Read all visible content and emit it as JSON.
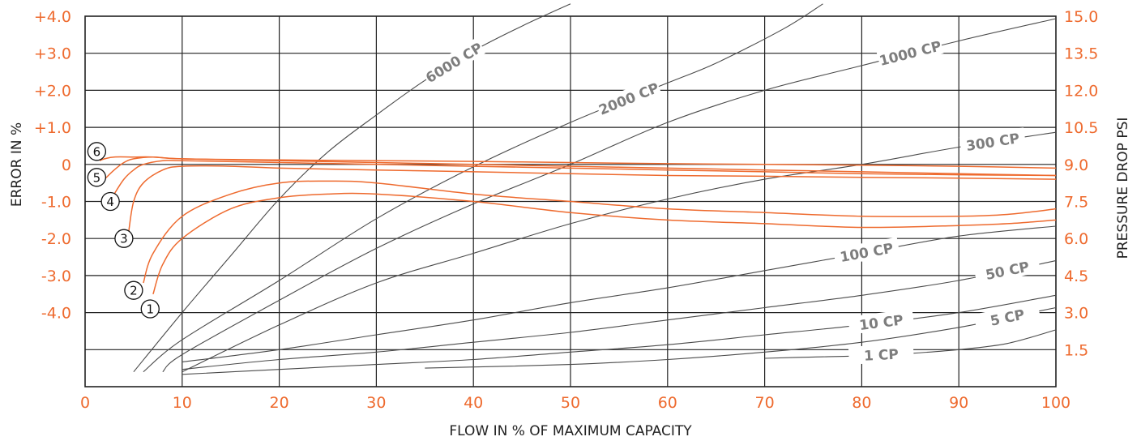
{
  "chart_data": {
    "type": "line",
    "title": "",
    "xlabel": "FLOW IN % OF MAXIMUM CAPACITY",
    "ylabel_left": "ERROR IN %",
    "ylabel_right": "PRESSURE DROP PSI",
    "xlim": [
      0,
      100
    ],
    "ylim_left": [
      -6.0,
      4.0
    ],
    "ylim_right": [
      0.0,
      15.0
    ],
    "x_ticks": [
      "0",
      "10",
      "20",
      "30",
      "40",
      "50",
      "60",
      "70",
      "80",
      "90",
      "100"
    ],
    "y_ticks_left": [
      {
        "value": 4,
        "label": "+4.0"
      },
      {
        "value": 3,
        "label": "+3.0"
      },
      {
        "value": 2,
        "label": "+2.0"
      },
      {
        "value": 1,
        "label": "+1.0"
      },
      {
        "value": 0,
        "label": "0"
      },
      {
        "value": -1,
        "label": "-1.0"
      },
      {
        "value": -2,
        "label": "-2.0"
      },
      {
        "value": -3,
        "label": "-3.0"
      },
      {
        "value": -4,
        "label": "-4.0"
      }
    ],
    "y_ticks_right": [
      {
        "value": 15.0,
        "label": "15.0"
      },
      {
        "value": 13.5,
        "label": "13.5"
      },
      {
        "value": 12.0,
        "label": "12.0"
      },
      {
        "value": 10.5,
        "label": "10.5"
      },
      {
        "value": 9.0,
        "label": "9.0"
      },
      {
        "value": 7.5,
        "label": "7.5"
      },
      {
        "value": 6.0,
        "label": "6.0"
      },
      {
        "value": 4.5,
        "label": "4.5"
      },
      {
        "value": 3.0,
        "label": "3.0"
      },
      {
        "value": 1.5,
        "label": "1.5"
      }
    ],
    "grid": true,
    "error_series": [
      {
        "name": "1",
        "axis": "left",
        "color": "#ee6a2e",
        "x": [
          7,
          8,
          10,
          15,
          20,
          25,
          30,
          40,
          50,
          60,
          70,
          80,
          90,
          95,
          100
        ],
        "y": [
          -3.5,
          -2.7,
          -2.0,
          -1.2,
          -0.9,
          -0.8,
          -0.8,
          -1.0,
          -1.3,
          -1.5,
          -1.6,
          -1.7,
          -1.65,
          -1.6,
          -1.5
        ]
      },
      {
        "name": "2",
        "axis": "left",
        "color": "#ee6a2e",
        "x": [
          6,
          7,
          10,
          15,
          20,
          25,
          30,
          40,
          50,
          60,
          70,
          80,
          90,
          95,
          100
        ],
        "y": [
          -3.2,
          -2.4,
          -1.4,
          -0.8,
          -0.5,
          -0.45,
          -0.5,
          -0.8,
          -1.0,
          -1.2,
          -1.3,
          -1.4,
          -1.4,
          -1.35,
          -1.2
        ]
      },
      {
        "name": "3",
        "axis": "left",
        "color": "#ee6a2e",
        "x": [
          4.5,
          5,
          6,
          8,
          10,
          15,
          20,
          30,
          40,
          50,
          60,
          70,
          80,
          90,
          100
        ],
        "y": [
          -1.8,
          -1.0,
          -0.5,
          -0.15,
          -0.05,
          -0.05,
          -0.1,
          -0.15,
          -0.2,
          -0.25,
          -0.3,
          -0.32,
          -0.35,
          -0.37,
          -0.4
        ]
      },
      {
        "name": "4",
        "axis": "left",
        "color": "#ee6a2e",
        "x": [
          3,
          4,
          5,
          6,
          8,
          10,
          20,
          30,
          40,
          50,
          60,
          70,
          80,
          90,
          100
        ],
        "y": [
          -0.8,
          -0.4,
          -0.15,
          0.0,
          0.1,
          0.1,
          0.05,
          0.0,
          -0.05,
          -0.1,
          -0.15,
          -0.2,
          -0.25,
          -0.28,
          -0.3
        ]
      },
      {
        "name": "5",
        "axis": "left",
        "color": "#ee6a2e",
        "x": [
          2,
          3,
          4,
          5,
          7,
          10,
          20,
          30,
          40,
          50,
          60,
          70,
          80,
          90,
          100
        ],
        "y": [
          -0.4,
          -0.15,
          0.05,
          0.15,
          0.2,
          0.15,
          0.1,
          0.05,
          0.0,
          -0.05,
          -0.1,
          -0.15,
          -0.2,
          -0.25,
          -0.3
        ]
      },
      {
        "name": "6",
        "axis": "left",
        "color": "#ee6a2e",
        "x": [
          1.5,
          2,
          3,
          5,
          7,
          10,
          20,
          30,
          40,
          50,
          60,
          70,
          80,
          90,
          100
        ],
        "y": [
          0.1,
          0.15,
          0.2,
          0.2,
          0.2,
          0.15,
          0.12,
          0.1,
          0.08,
          0.05,
          0.02,
          0.0,
          -0.02,
          -0.05,
          -0.1
        ]
      }
    ],
    "viscosity_series": [
      {
        "name": "6000 CP",
        "axis": "right",
        "color": "#4a4a4a",
        "x": [
          5,
          10,
          15,
          20,
          25,
          30,
          35,
          40,
          45,
          50
        ],
        "y": [
          0.6,
          3.0,
          5.3,
          7.6,
          9.5,
          11.0,
          12.4,
          13.6,
          14.6,
          15.5
        ]
      },
      {
        "name": "2000 CP",
        "axis": "right",
        "color": "#4a4a4a",
        "x": [
          6,
          10,
          20,
          30,
          40,
          50,
          60,
          65,
          72,
          76
        ],
        "y": [
          0.6,
          1.9,
          4.3,
          6.8,
          8.9,
          10.7,
          12.3,
          13.1,
          14.5,
          15.5
        ]
      },
      {
        "name": "1000 CP",
        "axis": "right",
        "color": "#4a4a4a",
        "x": [
          8,
          10,
          20,
          30,
          40,
          50,
          60,
          70,
          80,
          90,
          100
        ],
        "y": [
          0.6,
          1.3,
          3.5,
          5.6,
          7.4,
          9.0,
          10.7,
          12.0,
          13.0,
          14.0,
          14.9
        ]
      },
      {
        "name": "300 CP",
        "axis": "right",
        "color": "#4a4a4a",
        "x": [
          10,
          20,
          30,
          40,
          50,
          60,
          70,
          80,
          90,
          100
        ],
        "y": [
          0.6,
          2.5,
          4.2,
          5.4,
          6.6,
          7.6,
          8.4,
          9.0,
          9.7,
          10.3
        ]
      },
      {
        "name": "100 CP",
        "axis": "right",
        "color": "#4a4a4a",
        "x": [
          10,
          20,
          30,
          40,
          50,
          60,
          70,
          80,
          90,
          100
        ],
        "y": [
          1.0,
          1.5,
          2.1,
          2.7,
          3.4,
          4.0,
          4.7,
          5.4,
          6.1,
          6.5
        ]
      },
      {
        "name": "50 CP",
        "axis": "right",
        "color": "#4a4a4a",
        "x": [
          10,
          20,
          30,
          40,
          50,
          60,
          70,
          80,
          90,
          100
        ],
        "y": [
          0.7,
          1.1,
          1.4,
          1.8,
          2.2,
          2.7,
          3.2,
          3.7,
          4.3,
          5.1
        ]
      },
      {
        "name": "10 CP",
        "axis": "right",
        "color": "#4a4a4a",
        "x": [
          10,
          20,
          30,
          40,
          50,
          60,
          70,
          80,
          90,
          100
        ],
        "y": [
          0.5,
          0.7,
          0.9,
          1.1,
          1.4,
          1.7,
          2.1,
          2.5,
          3.0,
          3.7
        ]
      },
      {
        "name": "5 CP",
        "axis": "right",
        "color": "#4a4a4a",
        "x": [
          35,
          50,
          60,
          70,
          80,
          90,
          95,
          100
        ],
        "y": [
          0.75,
          0.9,
          1.1,
          1.4,
          1.8,
          2.4,
          2.8,
          3.2
        ]
      },
      {
        "name": "1 CP",
        "axis": "right",
        "color": "#4a4a4a",
        "x": [
          70,
          75,
          80,
          85,
          90,
          95,
          100
        ],
        "y": [
          1.15,
          1.2,
          1.25,
          1.35,
          1.5,
          1.75,
          2.3
        ]
      }
    ]
  }
}
